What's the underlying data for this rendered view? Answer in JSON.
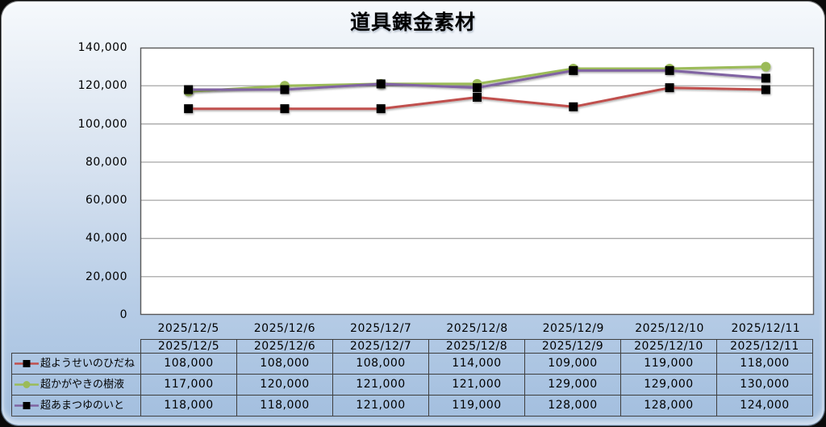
{
  "title": "道具錬金素材",
  "chart_data": {
    "type": "line",
    "title": "道具錬金素材",
    "categories": [
      "2025/12/5",
      "2025/12/6",
      "2025/12/7",
      "2025/12/8",
      "2025/12/9",
      "2025/12/10",
      "2025/12/11"
    ],
    "series": [
      {
        "name": "超ようせいのひだね",
        "values": [
          108000,
          108000,
          108000,
          114000,
          109000,
          119000,
          118000
        ],
        "line_color": "#C0504D",
        "marker": "square",
        "marker_color": "#000000"
      },
      {
        "name": "超かがやきの樹液",
        "values": [
          117000,
          120000,
          121000,
          121000,
          129000,
          129000,
          130000
        ],
        "line_color": "#9BBB59",
        "marker": "circle",
        "marker_color": "#9BBB59"
      },
      {
        "name": "超あまつゆのいと",
        "values": [
          118000,
          118000,
          121000,
          119000,
          128000,
          128000,
          124000
        ],
        "line_color": "#8064A2",
        "marker": "square",
        "marker_color": "#000000"
      }
    ],
    "ylim": [
      0,
      140000
    ],
    "ytick_step": 20000,
    "ytick_labels": [
      "0",
      "20,000",
      "40,000",
      "60,000",
      "80,000",
      "100,000",
      "120,000",
      "140,000"
    ],
    "grid": "horizontal",
    "legend_position": "data-table-left",
    "data_table_shown": true
  },
  "colors": {
    "background_top": "#F6F9FC",
    "background_bottom": "#A2BEDE",
    "plot_background": "#FFFFFF",
    "gridline": "#A6A6A6",
    "plot_border": "#595959",
    "table_border": "#3F3F3F",
    "frame": "#0A0A0A",
    "text": "#000000"
  }
}
